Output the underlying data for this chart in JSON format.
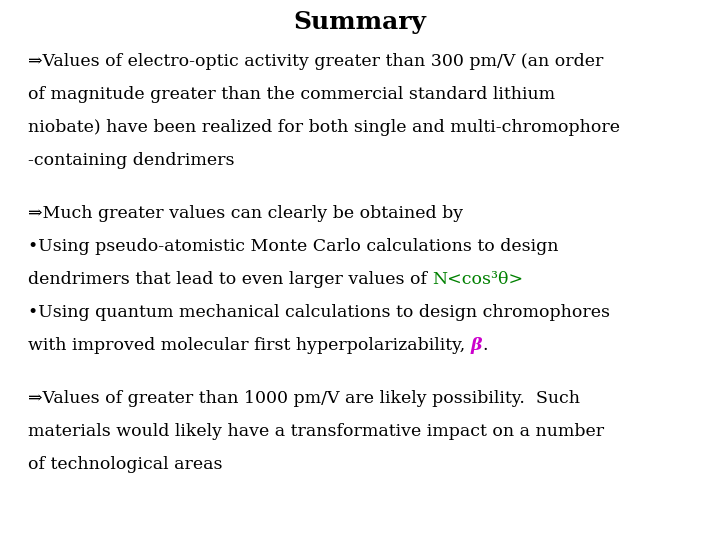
{
  "title": "Summary",
  "background_color": "#ffffff",
  "text_color": "#000000",
  "green_color": "#008000",
  "magenta_color": "#cc00cc",
  "title_fontsize": 18,
  "body_fontsize": 12.5,
  "font_family": "DejaVu Serif",
  "para1_lines": [
    "⇒Values of electro-optic activity greater than 300 pm/V (an order",
    "of magnitude greater than the commercial standard lithium",
    "niobate) have been realized for both single and multi-chromophore",
    "-containing dendrimers"
  ],
  "para2_line1": "⇒Much greater values can clearly be obtained by",
  "para2_bullet1_line1": "•Using pseudo-atomistic Monte Carlo calculations to design",
  "para2_bullet1_line2_before": "dendrimers that lead to even larger values of ",
  "para2_bullet1_line2_green": "N<cos³θ>",
  "para2_bullet2_line1": "•Using quantum mechanical calculations to design chromophores",
  "para2_bullet2_line2_before": "with improved molecular first hyperpolarizability, ",
  "para2_bullet2_line2_beta": "β",
  "para2_bullet2_line2_after": ".",
  "para3_lines": [
    "⇒Values of greater than 1000 pm/V are likely possibility.  Such",
    "materials would likely have a transformative impact on a number",
    "of technological areas"
  ]
}
